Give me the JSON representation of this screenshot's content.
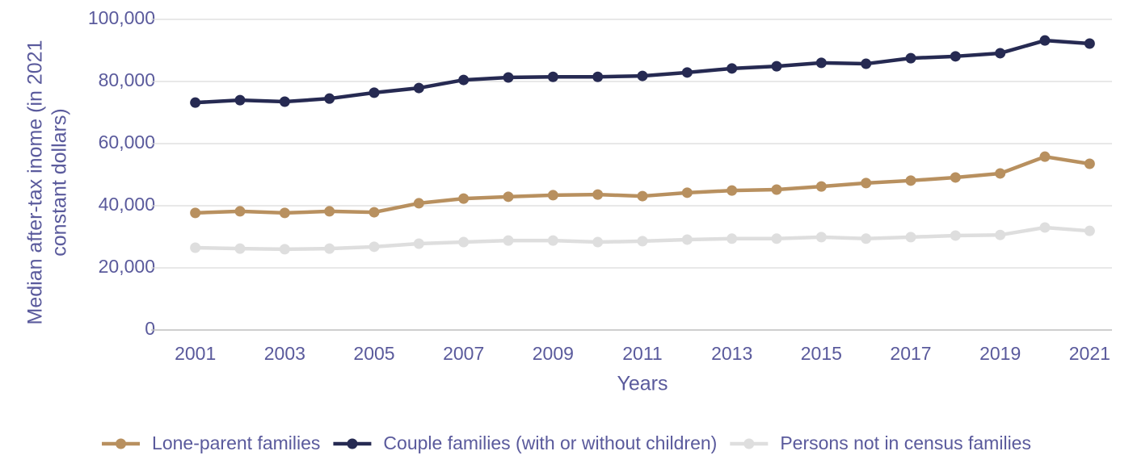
{
  "chart_data": {
    "type": "line",
    "ylabel": [
      "Median after-tax inome (in 2021",
      "constant dollars)"
    ],
    "xlabel": "Years",
    "x": [
      2001,
      2002,
      2003,
      2004,
      2005,
      2006,
      2007,
      2008,
      2009,
      2010,
      2011,
      2012,
      2013,
      2014,
      2015,
      2016,
      2017,
      2018,
      2019,
      2020,
      2021
    ],
    "xlim": [
      2000.5,
      2021.5
    ],
    "xticks": [
      2001,
      2003,
      2005,
      2007,
      2009,
      2011,
      2013,
      2015,
      2017,
      2019,
      2021
    ],
    "ylim": [
      0,
      100000
    ],
    "yticks": [
      0,
      {
        "value": 20000,
        "label": "20,000"
      },
      {
        "value": 40000,
        "label": "40,000"
      },
      {
        "value": 60000,
        "label": "60,000"
      },
      {
        "value": 80000,
        "label": "80,000"
      },
      {
        "value": 100000,
        "label": "100,000"
      }
    ],
    "grid": true,
    "legend": "bottom",
    "series": [
      {
        "name": "Lone-parent families",
        "color": "#b8905f",
        "values": [
          37700,
          38200,
          37700,
          38200,
          37900,
          40800,
          42300,
          42900,
          43400,
          43600,
          43100,
          44200,
          44900,
          45200,
          46200,
          47300,
          48100,
          49100,
          50400,
          55800,
          53500
        ]
      },
      {
        "name": "Couple families (with or without children)",
        "color": "#262a52",
        "values": [
          73200,
          74000,
          73500,
          74500,
          76400,
          77900,
          80500,
          81300,
          81500,
          81500,
          81800,
          82900,
          84200,
          84900,
          86000,
          85700,
          87500,
          88100,
          89100,
          93200,
          92200
        ]
      },
      {
        "name": "Persons not in census families",
        "color": "#dedede",
        "values": [
          26500,
          26200,
          26000,
          26200,
          26800,
          27800,
          28300,
          28800,
          28800,
          28300,
          28600,
          29100,
          29400,
          29400,
          29900,
          29400,
          29900,
          30400,
          30600,
          33000,
          31900
        ]
      }
    ]
  }
}
